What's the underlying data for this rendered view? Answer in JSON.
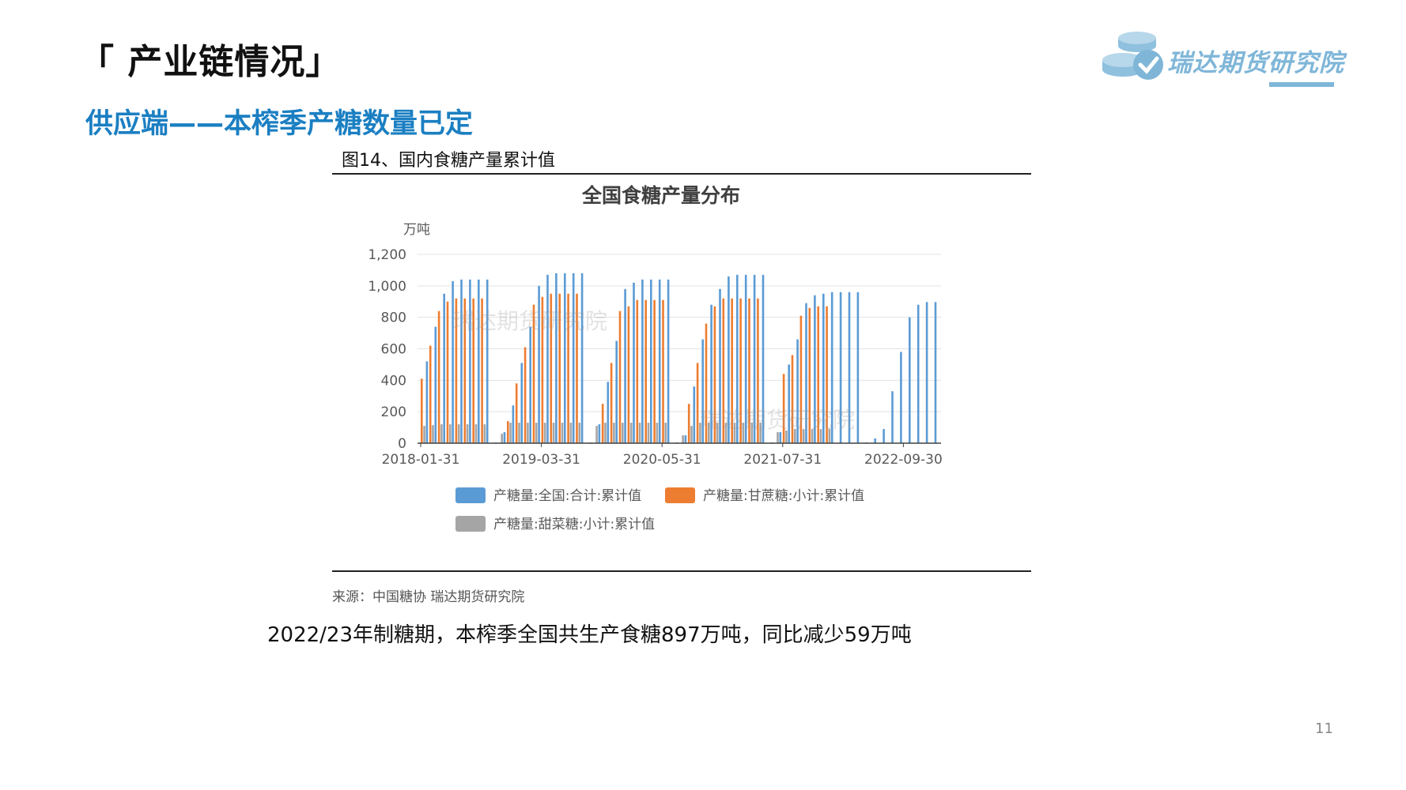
{
  "header": {
    "section_title": "「 产业链情况」",
    "subtitle": "供应端——本榨季产糖数量已定",
    "logo_text": "瑞达期货研究院"
  },
  "figure": {
    "caption": "图14、国内食糖产量累计值",
    "source": "来源：中国糖协    瑞达期货研究院",
    "watermark": "瑞达期货研究院"
  },
  "summary": "2022/23年制糖期，本榨季全国共生产食糖897万吨，同比减少59万吨",
  "page_number": "11",
  "chart_data": {
    "type": "bar",
    "title": "全国食糖产量分布",
    "ylabel": "万吨",
    "ylim": [
      0,
      1200
    ],
    "yticks": [
      "0",
      "200",
      "400",
      "600",
      "800",
      "1,000",
      "1,200"
    ],
    "xtick_labels": [
      "2018-01-31",
      "2019-03-31",
      "2020-05-31",
      "2021-07-31",
      "2022-09-30"
    ],
    "grid": true,
    "legend_position": "bottom",
    "colors": {
      "total": "#5b9bd5",
      "cane": "#ed7d31",
      "beet": "#a5a5a5"
    },
    "series": [
      {
        "name": "产糖量:全国:合计:累计值",
        "key": "total",
        "values": [
          520,
          740,
          950,
          1030,
          1040,
          1040,
          1040,
          1040,
          5,
          70,
          240,
          510,
          740,
          1000,
          1070,
          1080,
          1080,
          1080,
          1080,
          5,
          120,
          390,
          650,
          980,
          1020,
          1040,
          1040,
          1040,
          1040,
          5,
          50,
          360,
          660,
          880,
          980,
          1060,
          1070,
          1070,
          1070,
          1070,
          5,
          70,
          500,
          660,
          890,
          940,
          950,
          960,
          960,
          960,
          960,
          5,
          30,
          90,
          330,
          580,
          800,
          880,
          897,
          897
        ]
      },
      {
        "name": "产糖量:甘蔗糖:小计:累计值",
        "key": "cane",
        "values": [
          410,
          620,
          840,
          900,
          920,
          920,
          920,
          920,
          0,
          0,
          140,
          380,
          610,
          880,
          930,
          950,
          950,
          950,
          950,
          0,
          0,
          250,
          510,
          840,
          870,
          910,
          910,
          910,
          910,
          0,
          0,
          250,
          510,
          760,
          870,
          920,
          920,
          920,
          920,
          920,
          0,
          0,
          440,
          560,
          810,
          860,
          870,
          870,
          0,
          0,
          0,
          0,
          0,
          0,
          0,
          0,
          0,
          0,
          0,
          0
        ]
      },
      {
        "name": "产糖量:甜菜糖:小计:累计值",
        "key": "beet",
        "values": [
          110,
          115,
          120,
          120,
          120,
          120,
          120,
          120,
          0,
          60,
          130,
          130,
          130,
          130,
          130,
          130,
          130,
          130,
          130,
          0,
          110,
          130,
          130,
          130,
          130,
          130,
          130,
          130,
          130,
          0,
          50,
          110,
          130,
          130,
          130,
          130,
          130,
          130,
          130,
          130,
          0,
          70,
          80,
          90,
          90,
          90,
          90,
          90,
          0,
          0,
          0,
          0,
          0,
          0,
          0,
          0,
          0,
          0,
          0,
          0
        ]
      }
    ]
  }
}
